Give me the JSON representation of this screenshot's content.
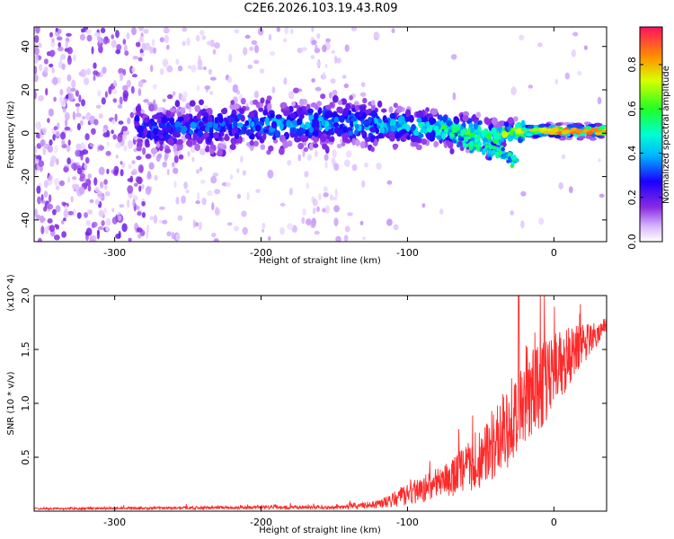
{
  "chart_data": [
    {
      "type": "heatmap",
      "title": "C2E6.2026.103.19.43.R09",
      "xlabel": "Height of straight line (km)",
      "ylabel": "Frequency (Hz)",
      "xlim": [
        -355,
        36
      ],
      "ylim": [
        -50,
        49
      ],
      "xticks": [
        -300,
        -200,
        -100,
        0
      ],
      "yticks": [
        -40,
        -20,
        0,
        20,
        40
      ],
      "colorbar": {
        "label": "Normalized spectral amplitude",
        "range": [
          0,
          0.97
        ],
        "ticks": [
          0.0,
          0.2,
          0.4,
          0.6,
          0.8
        ]
      },
      "ridge": [
        {
          "x": -275,
          "freq": 2,
          "amp": 0.35
        },
        {
          "x": -200,
          "freq": 4,
          "amp": 0.42
        },
        {
          "x": -150,
          "freq": 5,
          "amp": 0.45
        },
        {
          "x": -100,
          "freq": 3,
          "amp": 0.48
        },
        {
          "x": -75,
          "freq": 2,
          "amp": 0.62
        },
        {
          "x": -40,
          "freq": -2,
          "amp": 0.68
        },
        {
          "x": -25,
          "freq": 1,
          "amp": 0.75
        },
        {
          "x": 0,
          "freq": 1,
          "amp": 0.88
        },
        {
          "x": 10,
          "freq": 1,
          "amp": 0.95
        },
        {
          "x": 36,
          "freq": 1,
          "amp": 0.9
        }
      ]
    },
    {
      "type": "line",
      "series_name": "SNR",
      "color": "#ff2a2a",
      "xlabel": "Height of straight line (km)",
      "ylabel": "SNR (10 * v/v)",
      "y_multiplier": "(x10^4)",
      "xlim": [
        -355,
        36
      ],
      "ylim": [
        0,
        2.0
      ],
      "xticks": [
        -300,
        -200,
        -100,
        0
      ],
      "yticks": [
        0.5,
        1.0,
        1.5,
        2.0
      ],
      "envelope": [
        {
          "x": -355,
          "base": 0.02,
          "spread": 0.01
        },
        {
          "x": -200,
          "base": 0.03,
          "spread": 0.02
        },
        {
          "x": -150,
          "base": 0.03,
          "spread": 0.02
        },
        {
          "x": -120,
          "base": 0.05,
          "spread": 0.05
        },
        {
          "x": -100,
          "base": 0.12,
          "spread": 0.12
        },
        {
          "x": -70,
          "base": 0.25,
          "spread": 0.22
        },
        {
          "x": -50,
          "base": 0.4,
          "spread": 0.35
        },
        {
          "x": -30,
          "base": 0.7,
          "spread": 0.5
        },
        {
          "x": -10,
          "base": 1.0,
          "spread": 0.55
        },
        {
          "x": 10,
          "base": 1.35,
          "spread": 0.35
        },
        {
          "x": 36,
          "base": 1.72,
          "spread": 0.08
        }
      ],
      "peak": {
        "x": -24,
        "y": 2.0
      }
    }
  ]
}
